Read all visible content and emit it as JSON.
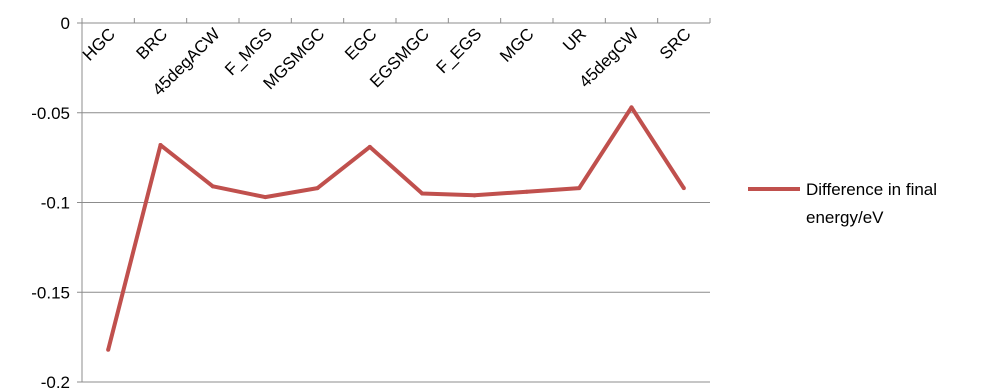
{
  "chart_data": {
    "type": "line",
    "categories": [
      "HGC",
      "BRC",
      "45degACW",
      "F_MGS",
      "MGSMGC",
      "EGC",
      "EGSMGC",
      "F_EGS",
      "MGC",
      "UR",
      "45degCW",
      "SRC"
    ],
    "series": [
      {
        "name": "Difference in final energy/eV",
        "values": [
          -0.182,
          -0.068,
          -0.091,
          -0.097,
          -0.092,
          -0.069,
          -0.095,
          -0.096,
          -0.094,
          -0.092,
          -0.047,
          -0.092
        ],
        "color": "#c0504d"
      }
    ],
    "y_ticks": [
      "0",
      "-0.05",
      "-0.1",
      "-0.15",
      "-0.2"
    ],
    "ylim": [
      -0.2,
      0
    ],
    "legend": {
      "placement": "right",
      "lines": [
        "Difference in final",
        "energy/eV"
      ]
    },
    "grid": "horizontal"
  }
}
